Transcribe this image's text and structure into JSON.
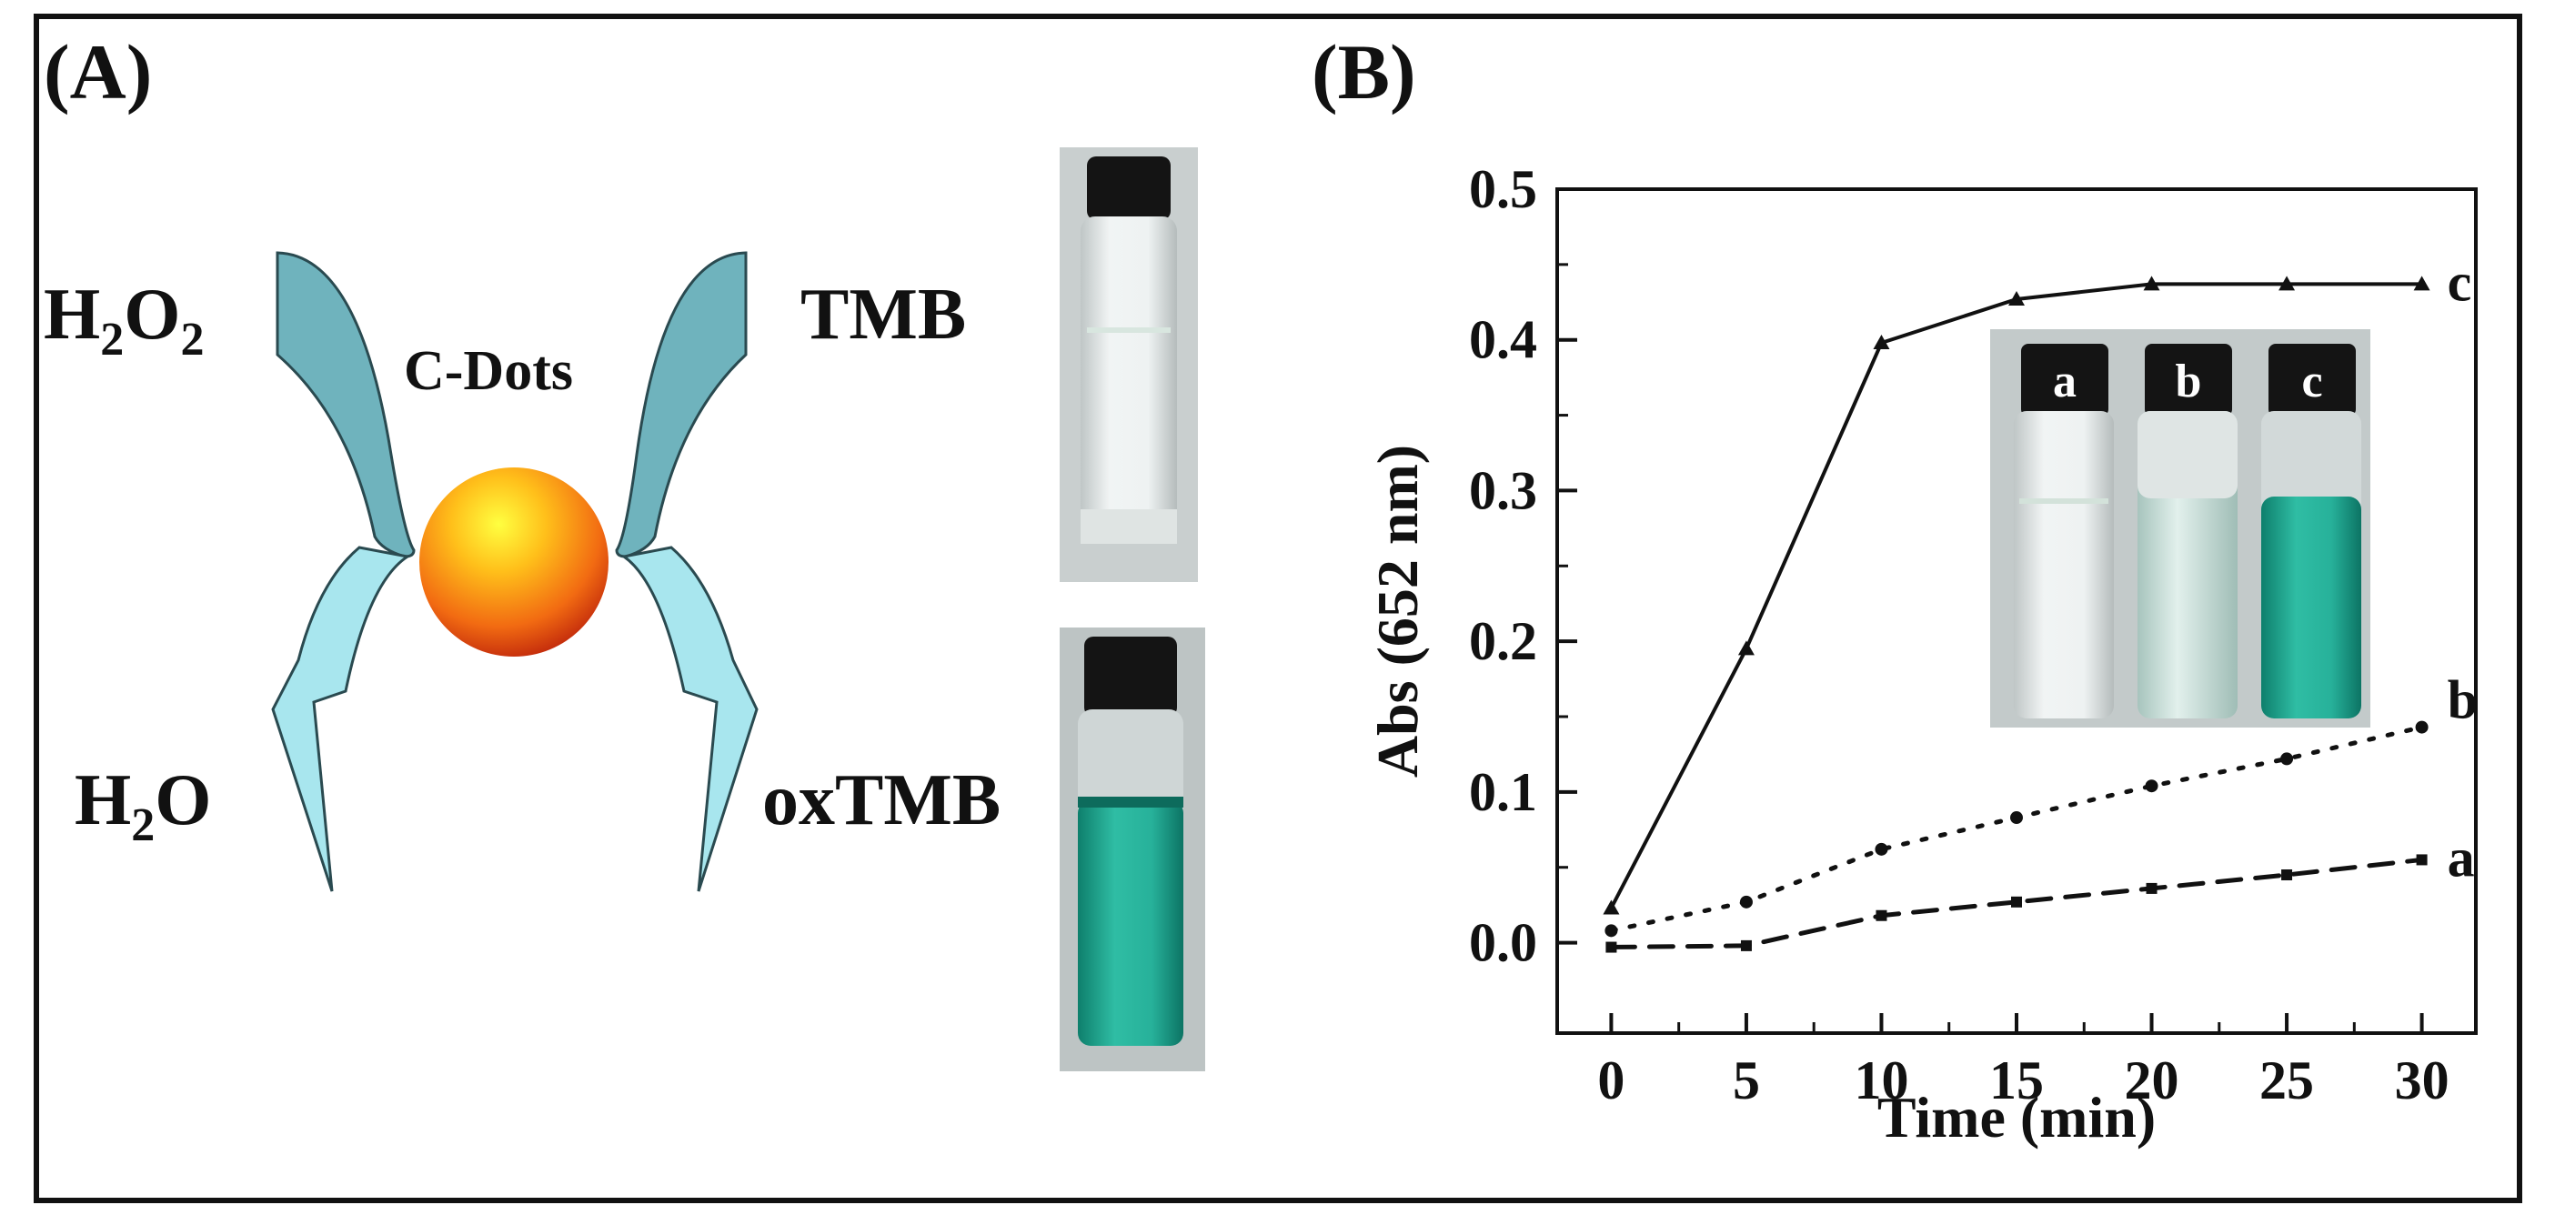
{
  "panel_a": {
    "label": "(A)",
    "h2o2": {
      "base": "H",
      "sub1": "2",
      "mid": "O",
      "sub2": "2"
    },
    "c_dots": "C-Dots",
    "tmb": "TMB",
    "h2o": {
      "base": "H",
      "sub": "2",
      "tail": "O"
    },
    "oxtmb": "oxTMB",
    "colors": {
      "arrow_top": "#6fb3bd",
      "arrow_bottom": "#a8e6ee",
      "sphere_core": "#ffff33",
      "sphere_edge": "#e03a10",
      "solution_green": "#1fa890"
    }
  },
  "panel_b": {
    "label": "(B)",
    "inset_labels": [
      "a",
      "b",
      "c"
    ]
  },
  "chart_data": {
    "type": "line",
    "xlabel": "Time  (min)",
    "ylabel": "Abs  (652 nm)",
    "xlim": [
      -2,
      32
    ],
    "ylim": [
      -0.06,
      0.5
    ],
    "x_ticks": [
      0,
      5,
      10,
      15,
      20,
      25,
      30
    ],
    "y_ticks": [
      0.0,
      0.1,
      0.2,
      0.3,
      0.4,
      0.5
    ],
    "x_tick_labels": [
      "0",
      "5",
      "10",
      "15",
      "20",
      "25",
      "30"
    ],
    "y_tick_labels": [
      "0.0",
      "0.1",
      "0.2",
      "0.3",
      "0.4",
      "0.5"
    ],
    "x": [
      0,
      5,
      10,
      15,
      20,
      25,
      30
    ],
    "series": [
      {
        "label": "a",
        "style": "dashed",
        "values": [
          -0.003,
          -0.002,
          0.018,
          0.027,
          0.036,
          0.045,
          0.055
        ]
      },
      {
        "label": "b",
        "style": "dotted",
        "values": [
          0.008,
          0.027,
          0.062,
          0.083,
          0.104,
          0.122,
          0.143
        ]
      },
      {
        "label": "c",
        "style": "solid",
        "values": [
          0.023,
          0.195,
          0.398,
          0.427,
          0.437,
          0.437,
          0.437
        ]
      }
    ],
    "grid": false
  }
}
